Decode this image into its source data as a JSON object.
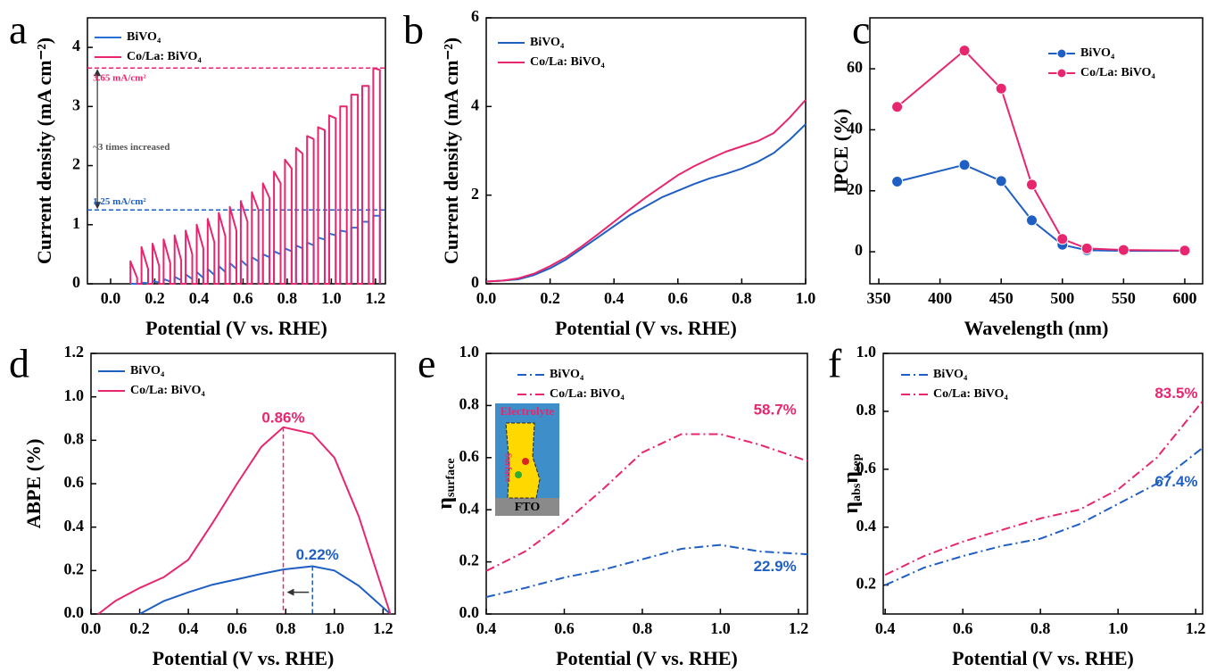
{
  "chart_data": [
    {
      "type": "line",
      "panel_label": "a",
      "xlabel": "Potential (V vs. RHE)",
      "ylabel": "Current density (mA cm⁻²)",
      "xlim": [
        -0.105,
        1.245
      ],
      "ylim": [
        0,
        4.5
      ],
      "xticks": [
        {
          "value": 0,
          "label": "0.0"
        },
        0.2,
        0.4,
        0.6,
        0.8,
        {
          "value": 1,
          "label": "1.0"
        },
        1.2
      ],
      "yticks": [
        0,
        1,
        2,
        3,
        4
      ],
      "x": [
        0.09,
        0.09,
        0.12,
        0.12,
        0.14,
        0.14,
        0.17,
        0.17,
        0.19,
        0.19,
        0.22,
        0.22,
        0.24,
        0.24,
        0.27,
        0.27,
        0.29,
        0.29,
        0.32,
        0.32,
        0.34,
        0.34,
        0.37,
        0.37,
        0.39,
        0.39,
        0.42,
        0.42,
        0.44,
        0.44,
        0.47,
        0.47,
        0.49,
        0.49,
        0.52,
        0.52,
        0.54,
        0.54,
        0.57,
        0.57,
        0.59,
        0.59,
        0.62,
        0.62,
        0.64,
        0.64,
        0.67,
        0.67,
        0.69,
        0.69,
        0.72,
        0.72,
        0.74,
        0.74,
        0.77,
        0.77,
        0.79,
        0.79,
        0.82,
        0.82,
        0.84,
        0.84,
        0.87,
        0.87,
        0.89,
        0.89,
        0.92,
        0.92,
        0.94,
        0.94,
        0.97,
        0.97,
        0.99,
        0.99,
        1.02,
        1.02,
        1.04,
        1.04,
        1.07,
        1.07,
        1.09,
        1.09,
        1.12,
        1.12,
        1.14,
        1.14,
        1.17,
        1.17,
        1.19,
        1.19,
        1.22,
        1.22
      ],
      "series": [
        {
          "name": "BiVO₄",
          "color": "#2a6fd6",
          "values": [
            0,
            0,
            0,
            0,
            0,
            0.02,
            0.01,
            0,
            0,
            0.05,
            0.02,
            0,
            0,
            0.08,
            0.04,
            0,
            0,
            0.12,
            0.06,
            0,
            0,
            0.16,
            0.08,
            0,
            0,
            0.2,
            0.1,
            0,
            0,
            0.25,
            0.15,
            0,
            0,
            0.3,
            0.2,
            0,
            0,
            0.35,
            0.25,
            0,
            0,
            0.4,
            0.3,
            0,
            0,
            0.45,
            0.38,
            0,
            0,
            0.5,
            0.45,
            0,
            0,
            0.55,
            0.5,
            0,
            0,
            0.6,
            0.55,
            0,
            0,
            0.65,
            0.6,
            0,
            0,
            0.7,
            0.65,
            0,
            0,
            0.78,
            0.75,
            0,
            0,
            0.85,
            0.82,
            0,
            0,
            0.9,
            0.88,
            0,
            0,
            0.95,
            0.95,
            0,
            0,
            1.05,
            1.05,
            0,
            0,
            1.15,
            1.15,
            0
          ]
        },
        {
          "name": "Co/La: BiVO₄",
          "color": "#e8266f",
          "values": [
            0,
            0.38,
            0.1,
            0,
            0,
            0.62,
            0.25,
            0,
            0,
            0.68,
            0.3,
            0,
            0,
            0.75,
            0.35,
            0,
            0,
            0.82,
            0.4,
            0,
            0,
            0.9,
            0.5,
            0,
            0,
            1.0,
            0.6,
            0,
            0,
            1.1,
            0.7,
            0,
            0,
            1.2,
            0.8,
            0,
            0,
            1.3,
            0.9,
            0,
            0,
            1.4,
            1.05,
            0,
            0,
            1.55,
            1.25,
            0,
            0,
            1.7,
            1.45,
            0,
            0,
            1.9,
            1.7,
            0,
            0,
            2.1,
            1.95,
            0,
            0,
            2.3,
            2.2,
            0,
            0,
            2.5,
            2.45,
            0,
            0,
            2.65,
            2.6,
            0,
            0,
            2.85,
            2.8,
            0,
            0,
            3.0,
            3.0,
            0,
            0,
            3.2,
            3.2,
            0,
            0,
            3.35,
            3.35,
            0,
            0,
            3.65,
            3.62,
            0
          ]
        }
      ],
      "hlines": [
        {
          "value": 3.65,
          "color": "#e8266f"
        },
        {
          "value": 1.25,
          "color": "#1f5fc4"
        }
      ],
      "annotations": [
        {
          "text": "3.65 mA/cm²",
          "color": "#e8266f"
        },
        {
          "text": "~3 times increased",
          "color": "#555555"
        },
        {
          "text": "1.25 mA/cm²",
          "color": "#1f5fc4"
        }
      ]
    },
    {
      "type": "line",
      "panel_label": "b",
      "xlabel": "Potential (V vs. RHE)",
      "ylabel": "Current density (mA cm⁻²)",
      "xlim": [
        0,
        1
      ],
      "ylim": [
        0,
        6
      ],
      "xticks": [
        {
          "value": 0,
          "label": "0.0"
        },
        0.2,
        0.4,
        0.6,
        0.8,
        {
          "value": 1,
          "label": "1.0"
        }
      ],
      "yticks": [
        0,
        2,
        4,
        6
      ],
      "x": [
        0,
        0.05,
        0.1,
        0.15,
        0.2,
        0.25,
        0.3,
        0.35,
        0.4,
        0.45,
        0.5,
        0.55,
        0.6,
        0.65,
        0.7,
        0.75,
        0.8,
        0.85,
        0.9,
        0.95,
        1.0
      ],
      "series": [
        {
          "name": "BiVO₄",
          "color": "#1f5fc4",
          "values": [
            0.05,
            0.07,
            0.1,
            0.2,
            0.35,
            0.55,
            0.8,
            1.05,
            1.3,
            1.55,
            1.75,
            1.95,
            2.1,
            2.25,
            2.38,
            2.48,
            2.6,
            2.75,
            2.95,
            3.25,
            3.6
          ]
        },
        {
          "name": "Co/La: BiVO₄",
          "color": "#e8266f",
          "values": [
            0.05,
            0.07,
            0.12,
            0.23,
            0.4,
            0.6,
            0.85,
            1.12,
            1.4,
            1.68,
            1.95,
            2.2,
            2.45,
            2.65,
            2.82,
            2.98,
            3.1,
            3.22,
            3.4,
            3.75,
            4.15
          ]
        }
      ]
    },
    {
      "type": "line",
      "panel_label": "c",
      "marker": true,
      "xlabel": "Wavelength (nm)",
      "ylabel": "IPCE (%)",
      "xlim": [
        342.7,
        614.6
      ],
      "ylim": [
        -10.5,
        76.7
      ],
      "xticks": [
        350,
        400,
        450,
        500,
        550,
        600
      ],
      "yticks": [
        0,
        20,
        40,
        60
      ],
      "x": [
        365,
        420,
        450,
        475,
        500,
        520,
        550,
        600
      ],
      "series": [
        {
          "name": "BiVO₄",
          "color": "#1f5fc4",
          "values": [
            23,
            28.5,
            23.2,
            10.3,
            2.3,
            0.5,
            0.3,
            0.3
          ]
        },
        {
          "name": "Co/La: BiVO₄",
          "color": "#e8266f",
          "values": [
            47.5,
            66,
            53.5,
            22,
            4.2,
            1.1,
            0.6,
            0.4
          ]
        }
      ]
    },
    {
      "type": "line",
      "panel_label": "d",
      "xlabel": "Potential (V vs. RHE)",
      "ylabel": "ABPE (%)",
      "xlim": [
        0,
        1.25
      ],
      "ylim": [
        0,
        1.2
      ],
      "xticks": [
        {
          "value": 0,
          "label": "0.0"
        },
        0.2,
        0.4,
        0.6,
        0.8,
        {
          "value": 1,
          "label": "1.0"
        },
        1.2
      ],
      "yticks": [
        {
          "value": 0,
          "label": "0.0"
        },
        0.2,
        0.4,
        0.6,
        0.8,
        {
          "value": 1,
          "label": "1.0"
        },
        1.2
      ],
      "x": [
        0.03,
        0.1,
        0.2,
        0.3,
        0.4,
        0.5,
        0.6,
        0.7,
        0.79,
        0.91,
        1.0,
        1.1,
        1.23
      ],
      "series": [
        {
          "name": "BiVO₄",
          "color": "#1f5fc4",
          "values": [
            null,
            null,
            0,
            0.06,
            0.1,
            0.135,
            0.16,
            0.185,
            0.205,
            0.22,
            0.2,
            0.13,
            0
          ]
        },
        {
          "name": "Co/La: BiVO₄",
          "color": "#e8266f",
          "values": [
            0,
            0.06,
            0.12,
            0.17,
            0.25,
            0.42,
            0.6,
            0.77,
            0.86,
            0.83,
            0.72,
            0.45,
            0
          ]
        }
      ],
      "annotations": [
        {
          "text": "0.86%",
          "color": "#e8266f"
        },
        {
          "text": "0.22%",
          "color": "#1f5fc4"
        }
      ]
    },
    {
      "type": "line",
      "panel_label": "e",
      "linestyle": "dashdot",
      "xlabel": "Potential (V vs. RHE)",
      "ylabel": [
        "η",
        "surface"
      ],
      "xlim": [
        0.4,
        1.223
      ],
      "ylim": [
        0,
        1
      ],
      "xticks": [
        0.4,
        0.6,
        0.8,
        {
          "value": 1,
          "label": "1.0"
        },
        1.2
      ],
      "yticks": [
        {
          "value": 0,
          "label": "0.0"
        },
        0.2,
        0.4,
        0.6,
        0.8,
        {
          "value": 1,
          "label": "1.0"
        }
      ],
      "x": [
        0.4,
        0.5,
        0.6,
        0.7,
        0.8,
        0.9,
        1.0,
        1.1,
        1.223
      ],
      "series": [
        {
          "name": "BiVO₄",
          "color": "#1f5fc4",
          "values": [
            0.065,
            0.1,
            0.14,
            0.17,
            0.21,
            0.25,
            0.265,
            0.24,
            0.229
          ]
        },
        {
          "name": "Co/La: BiVO₄",
          "color": "#e8266f",
          "values": [
            0.165,
            0.24,
            0.35,
            0.48,
            0.62,
            0.69,
            0.69,
            0.65,
            0.587
          ]
        }
      ],
      "annotations": [
        {
          "text": "58.7%",
          "color": "#e8266f"
        },
        {
          "text": "22.9%",
          "color": "#1f5fc4"
        }
      ],
      "inset_labels": [
        "Electrolyte",
        "Surface",
        "FTO"
      ]
    },
    {
      "type": "line",
      "panel_label": "f",
      "linestyle": "dashdot",
      "xlabel": "Potential (V vs. RHE)",
      "ylabel": [
        "η",
        "abs",
        "η",
        "sep"
      ],
      "xlim": [
        0.395,
        1.218
      ],
      "ylim": [
        0.1,
        1.0
      ],
      "xticks": [
        0.4,
        0.6,
        0.8,
        {
          "value": 1,
          "label": "1.0"
        },
        1.2
      ],
      "yticks": [
        0.2,
        0.4,
        0.6,
        0.8,
        {
          "value": 1,
          "label": "1.0"
        }
      ],
      "x": [
        0.4,
        0.5,
        0.6,
        0.7,
        0.8,
        0.9,
        1.0,
        1.1,
        1.218
      ],
      "series": [
        {
          "name": "BiVO₄",
          "color": "#1f5fc4",
          "values": [
            0.2,
            0.26,
            0.3,
            0.335,
            0.36,
            0.41,
            0.48,
            0.55,
            0.674
          ]
        },
        {
          "name": "Co/La: BiVO₄",
          "color": "#e8266f",
          "values": [
            0.235,
            0.3,
            0.35,
            0.39,
            0.43,
            0.46,
            0.53,
            0.64,
            0.835
          ]
        }
      ],
      "annotations": [
        {
          "text": "83.5%",
          "color": "#e8266f"
        },
        {
          "text": "67.4%",
          "color": "#1f5fc4"
        }
      ]
    }
  ]
}
